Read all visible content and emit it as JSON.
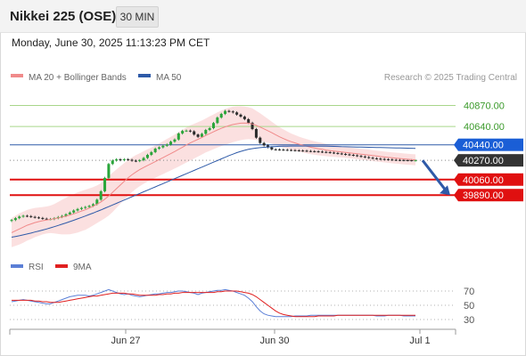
{
  "header": {
    "title": "Nikkei 225 (OSE)",
    "timeframe": "30 MIN"
  },
  "datetime": "Monday, June 30, 2025 11:13:23 PM CET",
  "legend": {
    "items": [
      {
        "label": "MA 20 + Bollinger Bands",
        "color": "#f08a8a"
      },
      {
        "label": "MA 50",
        "color": "#2e5aa8"
      }
    ],
    "credit": "Research © 2025 Trading Central"
  },
  "rsi_legend": {
    "items": [
      {
        "label": "RSI",
        "color": "#5b7fd6"
      },
      {
        "label": "9MA",
        "color": "#e02020"
      }
    ]
  },
  "levels": [
    {
      "label": "40870.00",
      "value": 40870,
      "style": "green-text",
      "color": "#3a9a2a",
      "line": "#a8d68a"
    },
    {
      "label": "40640.00",
      "value": 40640,
      "style": "green-text",
      "color": "#3a9a2a",
      "line": "#a8d68a"
    },
    {
      "label": "40440.00",
      "value": 40440,
      "style": "blue-box",
      "color": "#1a5ed6",
      "line": "#2e5aa8"
    },
    {
      "label": "40270.00",
      "value": 40270,
      "style": "dark-box",
      "color": "#333333",
      "line": "#888888"
    },
    {
      "label": "40060.00",
      "value": 40060,
      "style": "red-box",
      "color": "#e01010",
      "line": "#e01010"
    },
    {
      "label": "39890.00",
      "value": 39890,
      "style": "red-box",
      "color": "#e01010",
      "line": "#e01010"
    }
  ],
  "rsi_axis": {
    "ticks": [
      70,
      50,
      30
    ]
  },
  "x_axis": {
    "ticks": [
      "Jun 27",
      "Jun 30",
      "Jul 1"
    ]
  },
  "chart_data": {
    "type": "candlestick",
    "interval": "30 MIN",
    "price_close": [
      39618,
      39638,
      39655,
      39664,
      39660,
      39652,
      39646,
      39640,
      39632,
      39628,
      39628,
      39638,
      39650,
      39662,
      39680,
      39700,
      39722,
      39738,
      39750,
      39760,
      39772,
      39790,
      39840,
      39932,
      40078,
      40230,
      40268,
      40281,
      40272,
      40282,
      40276,
      40266,
      40262,
      40271,
      40296,
      40330,
      40360,
      40398,
      40412,
      40429,
      40443,
      40474,
      40498,
      40564,
      40592,
      40595,
      40587,
      40552,
      40527,
      40560,
      40602,
      40622,
      40678,
      40738,
      40778,
      40810,
      40804,
      40794,
      40770,
      40748,
      40720,
      40680,
      40612,
      40518,
      40460,
      40434,
      40412,
      40390,
      40389,
      40387,
      40385,
      40383,
      40381,
      40379,
      40377,
      40375,
      40372,
      40370,
      40368,
      40365,
      40362,
      40359,
      40355,
      40350,
      40345,
      40340,
      40335,
      40330,
      40325,
      40318,
      40312,
      40305,
      40298,
      40292,
      40288,
      40285,
      40282,
      40279,
      40276,
      40274,
      40273,
      40272,
      40271,
      40270,
      40270
    ],
    "ma20": [
      39480,
      39500,
      39520,
      39540,
      39560,
      39575,
      39590,
      39600,
      39610,
      39618,
      39625,
      39632,
      39640,
      39650,
      39660,
      39672,
      39685,
      39700,
      39715,
      39730,
      39748,
      39768,
      39790,
      39815,
      39845,
      39880,
      39920,
      39960,
      40000,
      40040,
      40080,
      40112,
      40142,
      40168,
      40192,
      40214,
      40235,
      40256,
      40278,
      40300,
      40322,
      40344,
      40366,
      40390,
      40414,
      40438,
      40460,
      40480,
      40500,
      40520,
      40542,
      40562,
      40582,
      40602,
      40620,
      40636,
      40650,
      40662,
      40670,
      40676,
      40678,
      40676,
      40668,
      40652,
      40634,
      40614,
      40594,
      40572,
      40550,
      40528,
      40508,
      40490,
      40474,
      40460,
      40447,
      40435,
      40424,
      40414,
      40405,
      40397,
      40390,
      40383,
      40377,
      40372,
      40367,
      40362,
      40357,
      40352,
      40347,
      40342,
      40337,
      40332,
      40327,
      40322,
      40317,
      40312,
      40307,
      40302,
      40298,
      40294,
      40290,
      40286,
      40282,
      40279,
      40276
    ],
    "ma50": [
      39430,
      39438,
      39446,
      39455,
      39465,
      39475,
      39486,
      39497,
      39508,
      39520,
      39532,
      39545,
      39558,
      39572,
      39586,
      39600,
      39615,
      39630,
      39646,
      39662,
      39678,
      39694,
      39711,
      39728,
      39746,
      39764,
      39782,
      39800,
      39818,
      39836,
      39854,
      39872,
      39890,
      39908,
      39926,
      39944,
      39962,
      39980,
      39998,
      40016,
      40034,
      40052,
      40070,
      40088,
      40106,
      40124,
      40142,
      40160,
      40178,
      40196,
      40214,
      40232,
      40250,
      40268,
      40286,
      40304,
      40322,
      40338,
      40354,
      40368,
      40380,
      40390,
      40398,
      40404,
      40409,
      40413,
      40416,
      40419,
      40421,
      40423,
      40424,
      40425,
      40426,
      40426,
      40426,
      40426,
      40426,
      40426,
      40425,
      40425,
      40424,
      40424,
      40423,
      40422,
      40421,
      40420,
      40419,
      40418,
      40417,
      40416,
      40415,
      40414,
      40413,
      40412,
      40411,
      40410,
      40409,
      40408,
      40407,
      40406,
      40405,
      40404,
      40403,
      40402,
      40401
    ],
    "bb_width": [
      160,
      165,
      170,
      170,
      168,
      165,
      160,
      155,
      150,
      148,
      150,
      160,
      175,
      190,
      200,
      210,
      215,
      220,
      220,
      220,
      215,
      210,
      205,
      205,
      210,
      215,
      215,
      210,
      205,
      200,
      195,
      190,
      185,
      180,
      178,
      176,
      175,
      176,
      178,
      180,
      182,
      184,
      186,
      188,
      190,
      192,
      192,
      190,
      188,
      186,
      186,
      188,
      190,
      192,
      194,
      196,
      196,
      194,
      190,
      185,
      180,
      175,
      170,
      160,
      150,
      140,
      130,
      120,
      112,
      105,
      100,
      95,
      90,
      86,
      82,
      80,
      78,
      76,
      74,
      72,
      70,
      68,
      66,
      64,
      62,
      60,
      60,
      60,
      60,
      60,
      60,
      60,
      60,
      60,
      60,
      60,
      60,
      60,
      60,
      60,
      60,
      60,
      60,
      60,
      60
    ],
    "rsi": [
      55,
      56,
      57,
      58,
      57,
      56,
      55,
      54,
      53,
      52,
      52,
      54,
      56,
      58,
      60,
      62,
      63,
      64,
      64,
      64,
      63,
      64,
      66,
      68,
      70,
      72,
      70,
      68,
      66,
      65,
      66,
      64,
      63,
      62,
      63,
      64,
      65,
      66,
      66,
      67,
      68,
      68,
      69,
      70,
      70,
      69,
      68,
      67,
      65,
      67,
      68,
      69,
      70,
      71,
      71,
      72,
      71,
      70,
      68,
      66,
      64,
      60,
      55,
      48,
      42,
      38,
      36,
      35,
      34,
      34,
      34,
      34,
      34,
      35,
      35,
      35,
      35,
      36,
      36,
      36,
      36,
      36,
      36,
      36,
      36,
      36,
      36,
      36,
      36,
      36,
      36,
      36,
      36,
      36,
      35,
      35,
      35,
      36,
      36,
      36,
      36,
      35,
      35,
      35,
      35
    ],
    "rsi_ma9": [
      57,
      57,
      57,
      57,
      57,
      57,
      56,
      56,
      55,
      55,
      54,
      54,
      54,
      55,
      56,
      57,
      58,
      59,
      60,
      61,
      62,
      63,
      63,
      64,
      65,
      66,
      67,
      67,
      67,
      67,
      66,
      66,
      65,
      64,
      64,
      64,
      64,
      64,
      65,
      65,
      66,
      66,
      67,
      67,
      68,
      68,
      68,
      68,
      68,
      68,
      68,
      68,
      68,
      69,
      69,
      70,
      70,
      70,
      70,
      69,
      68,
      67,
      65,
      62,
      58,
      54,
      50,
      46,
      42,
      39,
      37,
      36,
      35,
      34,
      34,
      34,
      34,
      34,
      34,
      35,
      35,
      35,
      35,
      35,
      36,
      36,
      36,
      36,
      36,
      36,
      36,
      36,
      36,
      36,
      36,
      36,
      36,
      36,
      36,
      36,
      36,
      36,
      36,
      36,
      36
    ],
    "forecast_arrow": {
      "from": 40270,
      "to": 39890
    },
    "y_range": [
      39250,
      41050
    ],
    "rsi_range": [
      0,
      100
    ]
  }
}
